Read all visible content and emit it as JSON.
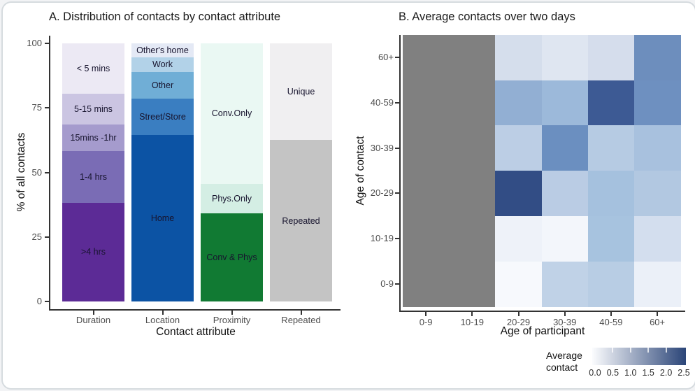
{
  "figure": {
    "background": "#ffffff",
    "border_color": "#d6dbdf"
  },
  "chart_data": [
    {
      "panel": "A",
      "type": "bar",
      "mode": "stacked_percent",
      "title": "A. Distribution of contacts by contact attribute",
      "xlabel": "Contact attribute",
      "ylabel": "% of all contacts",
      "ylim": [
        0,
        100
      ],
      "yticks": [
        "0",
        "25",
        "50",
        "75",
        "100"
      ],
      "categories": [
        "Duration",
        "Location",
        "Proximity",
        "Repeated"
      ],
      "stacks": {
        "Duration": [
          {
            "label": ">4 hrs",
            "value": 38.3,
            "color": "#5c2b96"
          },
          {
            "label": "1-4 hrs",
            "value": 20.1,
            "color": "#7a6cb5"
          },
          {
            "label": "15mins -1hr",
            "value": 10.1,
            "color": "#a59bcd"
          },
          {
            "label": "5-15 mins",
            "value": 12.0,
            "color": "#cbc5e2"
          },
          {
            "label": "< 5 mins",
            "value": 19.5,
            "color": "#ece9f4"
          }
        ],
        "Location": [
          {
            "label": "Home",
            "value": 64.4,
            "color": "#0c53a4"
          },
          {
            "label": "Street/Store",
            "value": 14.1,
            "color": "#3a7ec1"
          },
          {
            "label": "Other",
            "value": 10.5,
            "color": "#70aed6"
          },
          {
            "label": "Work",
            "value": 5.5,
            "color": "#b2d2e8"
          },
          {
            "label": "Other's home",
            "value": 5.5,
            "color": "#e4e9f5"
          }
        ],
        "Proximity": [
          {
            "label": "Conv & Phys",
            "value": 34.2,
            "color": "#117a33"
          },
          {
            "label": "Phys.Only",
            "value": 11.4,
            "color": "#d4eee4"
          },
          {
            "label": "Conv.Only",
            "value": 54.4,
            "color": "#eaf8f3"
          }
        ],
        "Repeated": [
          {
            "label": "Repeated",
            "value": 62.5,
            "color": "#c4c4c4"
          },
          {
            "label": "Unique",
            "value": 37.5,
            "color": "#f0eff1"
          }
        ]
      }
    },
    {
      "panel": "B",
      "type": "heatmap",
      "title": "B. Average contacts over two days",
      "xlabel": "Age of participant",
      "ylabel": "Age of contact",
      "x_categories": [
        "0-9",
        "10-19",
        "20-29",
        "30-39",
        "40-59",
        "60+"
      ],
      "y_categories_top_to_bottom": [
        "60+",
        "40-59",
        "30-39",
        "20-29",
        "10-19",
        "0-9"
      ],
      "na_color": "#808080",
      "rows_top_to_bottom": [
        {
          "y": "60+",
          "values": [
            null,
            null,
            0.45,
            0.35,
            0.45,
            1.6
          ],
          "colors": [
            null,
            null,
            "#d5deec",
            "#dfe6f1",
            "#d5ddec",
            "#6d8ebd"
          ]
        },
        {
          "y": "40-59",
          "values": [
            null,
            null,
            1.2,
            1.1,
            2.2,
            1.6
          ],
          "colors": [
            null,
            null,
            "#92afd3",
            "#9cb9da",
            "#3d5a94",
            "#6e90c0"
          ]
        },
        {
          "y": "30-39",
          "values": [
            null,
            null,
            0.75,
            1.65,
            0.8,
            0.95
          ],
          "colors": [
            null,
            null,
            "#bccee5",
            "#6b8fc0",
            "#b6cbe3",
            "#a8c1de"
          ]
        },
        {
          "y": "20-29",
          "values": [
            null,
            null,
            2.35,
            0.75,
            1.0,
            0.85
          ],
          "colors": [
            null,
            null,
            "#324d85",
            "#bacce4",
            "#a5c1de",
            "#b2c8e1"
          ]
        },
        {
          "y": "10-19",
          "values": [
            null,
            null,
            0.15,
            0.1,
            0.95,
            0.5
          ],
          "colors": [
            null,
            null,
            "#eef2f9",
            "#f3f6fb",
            "#a7c3df",
            "#d3deee"
          ]
        },
        {
          "y": "0-9",
          "values": [
            null,
            null,
            0.05,
            0.7,
            0.75,
            0.2
          ],
          "colors": [
            null,
            null,
            "#f7f9fd",
            "#c0d2e7",
            "#b8cde4",
            "#ebf0f8"
          ]
        }
      ],
      "legend": {
        "title": "Average contact",
        "ticks": [
          "0.0",
          "0.5",
          "1.0",
          "1.5",
          "2.0",
          "2.5"
        ],
        "gradient_start": "#fbfcfe",
        "gradient_end": "#2b4578"
      }
    }
  ]
}
